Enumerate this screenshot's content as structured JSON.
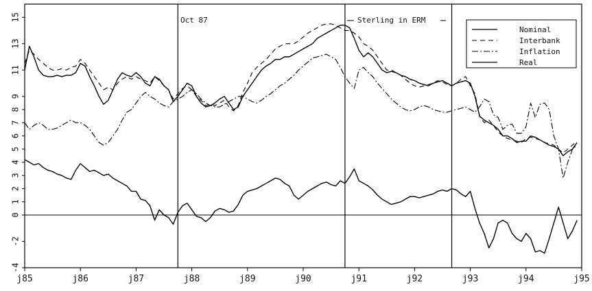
{
  "chart_data": {
    "type": "line",
    "title": "",
    "xlabel": "",
    "ylabel": "",
    "x_tick_labels": [
      "j85",
      "j86",
      "j87",
      "j88",
      "j89",
      "j90",
      "j91",
      "j92",
      "j93",
      "j94",
      "j95"
    ],
    "y_tick_labels": [
      "-4",
      "-2",
      "0",
      "1",
      "2",
      "3",
      "4",
      "5",
      "6",
      "7",
      "8",
      "9",
      "11",
      "13",
      "15"
    ],
    "ylim": [
      -4,
      16
    ],
    "xlim": [
      "1985-01",
      "1995-01"
    ],
    "grid": false,
    "legend_position": "top-right",
    "reference_lines": {
      "horizontal": [
        0
      ],
      "vertical_dates": [
        "1987-10",
        "1990-10",
        "1992-09"
      ]
    },
    "annotations": [
      {
        "text": "Oct 87",
        "at_date": "1987-10"
      },
      {
        "text": "Sterling in ERM",
        "at_date": "1990-10"
      }
    ],
    "series_start": "1985-01",
    "series_frequency": "monthly",
    "series": [
      {
        "name": "Nominal",
        "style": "solid",
        "values": [
          11,
          12.8,
          12,
          11,
          10.6,
          10.5,
          10.5,
          10.6,
          10.5,
          10.6,
          10.6,
          10.8,
          11.5,
          11.3,
          10.5,
          9.8,
          9,
          8.4,
          8.7,
          9.5,
          10.3,
          10.8,
          10.6,
          10.5,
          10.8,
          10.5,
          10,
          9.8,
          10.5,
          10.3,
          9.8,
          9.5,
          8.6,
          9,
          9.5,
          10,
          9.8,
          9,
          8.5,
          8.2,
          8.3,
          8.5,
          8.8,
          9,
          8.5,
          8,
          8.2,
          9,
          9.5,
          10,
          10.5,
          11,
          11.3,
          11.5,
          11.8,
          11.8,
          12,
          12,
          12.2,
          12.4,
          12.6,
          12.8,
          13,
          13.4,
          13.6,
          13.8,
          14,
          14.2,
          14.4,
          14.4,
          14.2,
          13.4,
          12.5,
          12,
          12.3,
          12,
          11.5,
          11,
          10.8,
          10.9,
          10.8,
          10.6,
          10.5,
          10.3,
          10.2,
          10,
          9.9,
          9.8,
          10,
          10.1,
          10.2,
          10,
          9.8,
          10,
          10.1,
          10.2,
          10,
          9,
          7.5,
          7.2,
          7,
          6.8,
          6.5,
          6,
          6,
          5.8,
          5.5,
          5.6,
          5.6,
          6,
          5.9,
          5.7,
          5.5,
          5.3,
          5.2,
          5,
          4.5,
          4.8,
          5,
          5.5
        ]
      },
      {
        "name": "Interbank",
        "style": "dashed",
        "values": [
          11.5,
          12.5,
          12.2,
          11.8,
          11.5,
          11.2,
          11,
          11,
          11.1,
          11,
          11.2,
          11.3,
          11.8,
          11.5,
          11,
          10.5,
          10,
          9.5,
          9.7,
          9.5,
          10,
          10.3,
          10.5,
          10.3,
          10.5,
          10.3,
          10.2,
          10,
          10.5,
          10.2,
          9.8,
          9.5,
          8.8,
          9.2,
          9.6,
          9.8,
          9.5,
          9,
          8.7,
          8.3,
          8.4,
          8.3,
          8.5,
          8.7,
          8.2,
          7.9,
          8.3,
          9.3,
          10,
          10.8,
          11.2,
          11.5,
          11.8,
          12.2,
          12.6,
          12.8,
          13,
          13,
          13,
          13.2,
          13.5,
          13.8,
          14,
          14.2,
          14.4,
          14.5,
          14.5,
          14.4,
          14.2,
          14,
          14,
          13.8,
          13.5,
          13,
          12.8,
          12.5,
          12,
          11.5,
          11,
          11,
          10.8,
          10.6,
          10.3,
          10,
          9.8,
          9.7,
          9.8,
          9.9,
          10,
          10.2,
          10.1,
          9.9,
          9.8,
          10,
          10.3,
          10.5,
          9.8,
          9.2,
          7.5,
          7,
          7.2,
          6.8,
          6.3,
          6,
          5.8,
          5.7,
          5.6,
          5.5,
          5.8,
          5.9,
          5.8,
          5.7,
          5.5,
          5.4,
          5.3,
          5,
          4.7,
          5,
          5.3,
          5.6
        ]
      },
      {
        "name": "Inflation",
        "style": "dash-dot",
        "values": [
          7,
          6.5,
          6.8,
          7,
          6.8,
          6.5,
          6.5,
          6.6,
          6.8,
          7,
          7.2,
          7,
          7,
          6.8,
          6.5,
          6,
          5.5,
          5.3,
          5.5,
          6,
          6.5,
          7.2,
          7.8,
          8,
          8.5,
          9,
          9.3,
          9,
          8.8,
          8.5,
          8.3,
          8.2,
          8.6,
          8.8,
          9,
          9.3,
          9.5,
          9.2,
          8.8,
          8.5,
          8.3,
          8.2,
          8.2,
          8.4,
          8.6,
          8.8,
          9,
          9,
          8.8,
          8.6,
          8.5,
          8.7,
          9,
          9.2,
          9.5,
          9.8,
          10,
          10.3,
          10.6,
          11,
          11.3,
          11.6,
          11.9,
          12,
          12.1,
          12.2,
          12,
          11.8,
          11.2,
          10.5,
          10,
          9.6,
          11,
          11.2,
          10.8,
          10.5,
          10,
          9.6,
          9.2,
          8.8,
          8.5,
          8.2,
          8,
          7.9,
          8,
          8.2,
          8.3,
          8.2,
          8,
          7.9,
          7.8,
          7.8,
          7.9,
          8,
          8.1,
          8.2,
          8,
          7.8,
          8.2,
          8.8,
          8.6,
          7.6,
          7.4,
          6.5,
          6.8,
          6.9,
          6.2,
          6.2,
          6.7,
          8.5,
          7.4,
          8.4,
          8.5,
          8,
          6,
          5,
          2.8,
          4,
          5,
          5.3
        ]
      },
      {
        "name": "Real",
        "style": "solid",
        "values": [
          4.2,
          4,
          3.8,
          3.9,
          3.6,
          3.4,
          3.3,
          3.1,
          3,
          2.8,
          2.7,
          3.4,
          3.9,
          3.6,
          3.3,
          3.4,
          3.2,
          3,
          3.1,
          2.8,
          2.6,
          2.4,
          2.2,
          1.8,
          1.8,
          1.2,
          1.1,
          0.7,
          -0.4,
          0.4,
          0,
          -0.2,
          -0.7,
          0.2,
          0.7,
          0.9,
          0.4,
          -0.1,
          -0.2,
          -0.5,
          -0.2,
          0.3,
          0.5,
          0.4,
          0.2,
          0.3,
          0.8,
          1.5,
          1.8,
          1.9,
          2,
          2.2,
          2.4,
          2.6,
          2.8,
          2.7,
          2.4,
          2.2,
          1.5,
          1.2,
          1.5,
          1.8,
          2,
          2.2,
          2.4,
          2.5,
          2.3,
          2.2,
          2.6,
          2.4,
          2.9,
          3.5,
          2.6,
          2.4,
          2.2,
          1.9,
          1.5,
          1.2,
          1,
          0.8,
          0.9,
          1,
          1.2,
          1.4,
          1.4,
          1.3,
          1.4,
          1.5,
          1.6,
          1.8,
          1.9,
          1.8,
          2,
          1.9,
          1.6,
          1.4,
          1.8,
          0.5,
          -0.6,
          -1.4,
          -2.5,
          -1.8,
          -0.6,
          -0.4,
          -0.6,
          -1.4,
          -1.8,
          -2,
          -1.4,
          -1.8,
          -2.8,
          -2.7,
          -2.9,
          -1.8,
          -0.6,
          0.6,
          -0.6,
          -1.8,
          -1.2,
          -0.4
        ]
      }
    ]
  }
}
